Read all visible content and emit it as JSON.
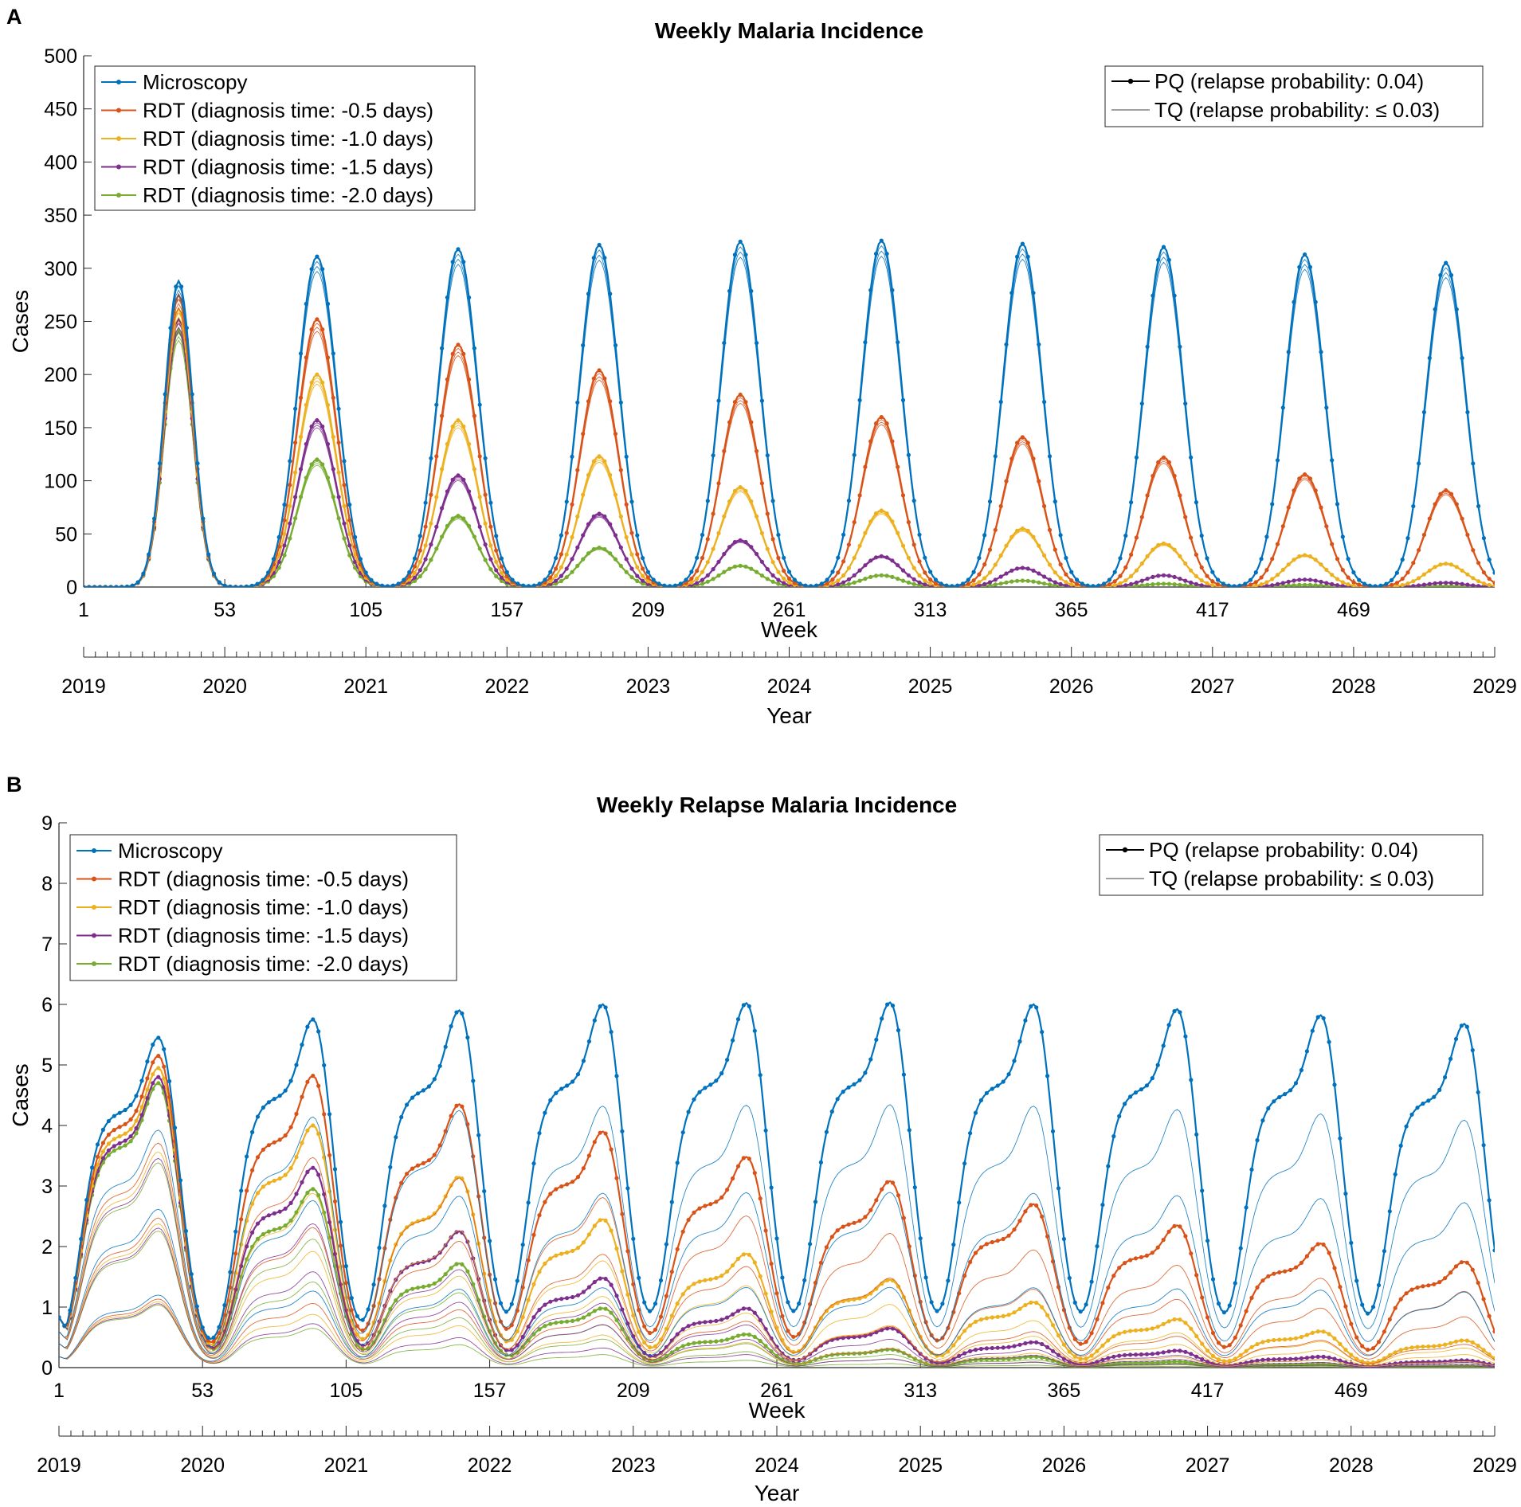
{
  "figure": {
    "panels": [
      "A",
      "B"
    ]
  },
  "colors": {
    "Microscopy": "#0072BD",
    "RDT -0.5": "#D95319",
    "RDT -1.0": "#EDB120",
    "RDT -1.5": "#7E2F8E",
    "RDT -2.0": "#77AC30"
  },
  "chart_data": [
    {
      "type": "line",
      "panel": "A",
      "title": "Weekly Malaria Incidence",
      "xlabel": "Week",
      "ylabel": "Cases",
      "xlabel2": "Year",
      "xlim": [
        1,
        521
      ],
      "ylim": [
        0,
        500
      ],
      "yticks": [
        0,
        50,
        100,
        150,
        200,
        250,
        300,
        350,
        400,
        450,
        500
      ],
      "xticks": [
        1,
        53,
        105,
        157,
        209,
        261,
        313,
        365,
        417,
        469
      ],
      "year_ticks": [
        "2019",
        "2020",
        "2021",
        "2022",
        "2023",
        "2024",
        "2025",
        "2026",
        "2027",
        "2028",
        "2029"
      ],
      "legend_series": [
        "Microscopy",
        "RDT (diagnosis time: -0.5 days)",
        "RDT (diagnosis time: -1.0 days)",
        "RDT (diagnosis time: -1.5 days)",
        "RDT (diagnosis time: -2.0 days)"
      ],
      "legend_treatment": [
        "PQ (relapse probability: 0.04)",
        "TQ (relapse probability: ≤ 0.03)"
      ],
      "season_peak_week": [
        36,
        87,
        139,
        191,
        243,
        295,
        347,
        399,
        451,
        503
      ],
      "series": [
        {
          "name": "Microscopy",
          "peaks": [
            288,
            311,
            318,
            322,
            325,
            326,
            323,
            320,
            313,
            305
          ]
        },
        {
          "name": "RDT (diagnosis time: -0.5 days)",
          "peaks": [
            275,
            252,
            228,
            204,
            181,
            160,
            141,
            122,
            106,
            91
          ]
        },
        {
          "name": "RDT (diagnosis time: -1.0 days)",
          "peaks": [
            262,
            200,
            157,
            123,
            94,
            72,
            55,
            41,
            30,
            22
          ]
        },
        {
          "name": "RDT (diagnosis time: -1.5 days)",
          "peaks": [
            252,
            157,
            105,
            69,
            44,
            29,
            18,
            11,
            7,
            4
          ]
        },
        {
          "name": "RDT (diagnosis time: -2.0 days)",
          "peaks": [
            243,
            120,
            67,
            37,
            20,
            11,
            6,
            3,
            2,
            1
          ]
        }
      ]
    },
    {
      "type": "line",
      "panel": "B",
      "title": "Weekly Relapse Malaria Incidence",
      "xlabel": "Week",
      "ylabel": "Cases",
      "xlabel2": "Year",
      "xlim": [
        1,
        521
      ],
      "ylim": [
        0,
        9
      ],
      "yticks": [
        0,
        1,
        2,
        3,
        4,
        5,
        6,
        7,
        8,
        9
      ],
      "xticks": [
        1,
        53,
        105,
        157,
        209,
        261,
        313,
        365,
        417,
        469
      ],
      "year_ticks": [
        "2019",
        "2020",
        "2021",
        "2022",
        "2023",
        "2024",
        "2025",
        "2026",
        "2027",
        "2028",
        "2029"
      ],
      "legend_series": [
        "Microscopy",
        "RDT (diagnosis time: -0.5 days)",
        "RDT (diagnosis time: -1.0 days)",
        "RDT (diagnosis time: -1.5 days)",
        "RDT (diagnosis time: -2.0 days)"
      ],
      "legend_treatment": [
        "PQ (relapse probability: 0.04)",
        "TQ (relapse probability: ≤ 0.03)"
      ],
      "season_peak_week": [
        37,
        93,
        146,
        198,
        250,
        302,
        354,
        406,
        458,
        510
      ],
      "series": [
        {
          "name": "Microscopy",
          "peaks": [
            5.45,
            5.75,
            5.9,
            6.0,
            6.02,
            6.03,
            6.0,
            5.92,
            5.82,
            5.68
          ]
        },
        {
          "name": "RDT (diagnosis time: -0.5 days)",
          "peaks": [
            5.15,
            4.82,
            4.35,
            3.9,
            3.48,
            3.08,
            2.7,
            2.35,
            2.05,
            1.75
          ]
        },
        {
          "name": "RDT (diagnosis time: -1.0 days)",
          "peaks": [
            4.95,
            4.0,
            3.15,
            2.45,
            1.88,
            1.45,
            1.08,
            0.8,
            0.6,
            0.45
          ]
        },
        {
          "name": "RDT (diagnosis time: -1.5 days)",
          "peaks": [
            4.8,
            3.3,
            2.25,
            1.48,
            0.98,
            0.65,
            0.42,
            0.28,
            0.18,
            0.12
          ]
        },
        {
          "name": "RDT (diagnosis time: -2.0 days)",
          "peaks": [
            4.7,
            2.95,
            1.72,
            0.98,
            0.55,
            0.3,
            0.18,
            0.1,
            0.06,
            0.03
          ]
        }
      ]
    }
  ]
}
